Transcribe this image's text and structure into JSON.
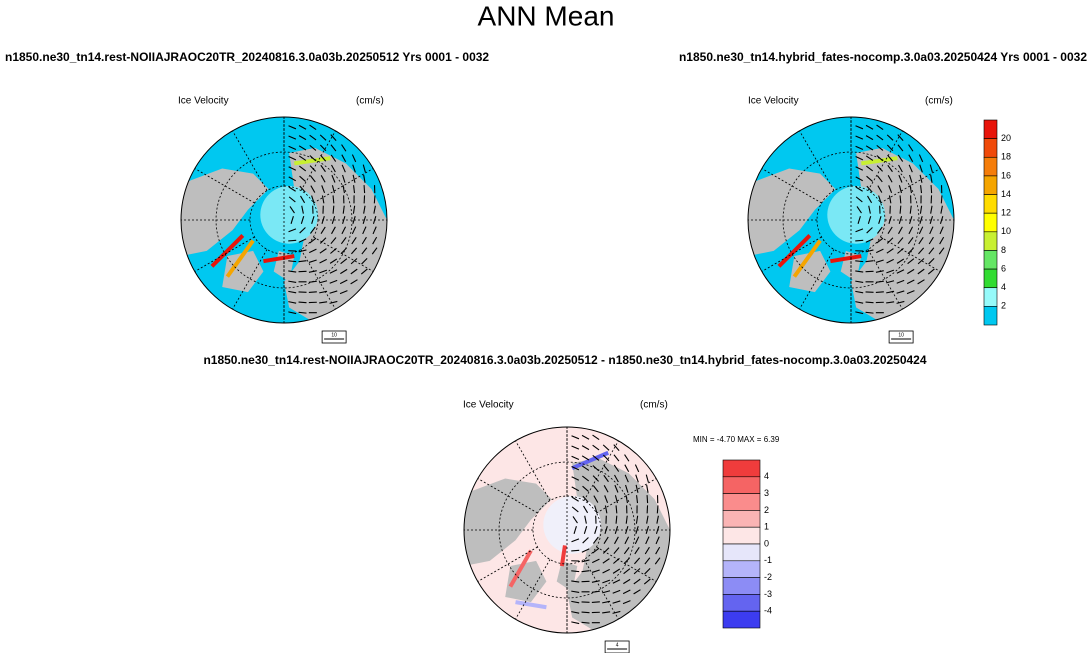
{
  "title": "ANN Mean",
  "panels": [
    {
      "header": "n1850.ne30_tn14.rest-NOIIAJRAOC20TR_20240816.3.0a03b.20250512  Yrs 0001 - 0032",
      "label": "Ice Velocity",
      "units": "(cm/s)",
      "ref_vector": "10"
    },
    {
      "header": "n1850.ne30_tn14.hybrid_fates-nocomp.3.0a03.20250424  Yrs 0001 - 0032",
      "label": "Ice Velocity",
      "units": "(cm/s)",
      "ref_vector": "10"
    },
    {
      "header": "n1850.ne30_tn14.rest-NOIIAJRAOC20TR_20240816.3.0a03b.20250512 - n1850.ne30_tn14.hybrid_fates-nocomp.3.0a03.20250424",
      "label": "Ice Velocity",
      "units": "(cm/s)",
      "ref_vector": "4",
      "min_max": "MIN =  -4.70 MAX =   6.39"
    }
  ],
  "colorbars": [
    {
      "labels": [
        "20",
        "18",
        "16",
        "14",
        "12",
        "10",
        "8",
        "6",
        "4",
        "2"
      ],
      "colors": [
        "#e8140a",
        "#f04a0a",
        "#f57d0a",
        "#f5a500",
        "#ffdc00",
        "#ffff00",
        "#c8f032",
        "#64e664",
        "#32dc32",
        "#96fafa",
        "#00c8f0"
      ]
    },
    {
      "labels": [
        "4",
        "3",
        "2",
        "1",
        "0",
        "-1",
        "-2",
        "-3",
        "-4"
      ],
      "colors": [
        "#f03c3c",
        "#f56464",
        "#fa8c8c",
        "#fab4b4",
        "#fde6e6",
        "#e6e6fa",
        "#b4b4fa",
        "#8c8cf5",
        "#6464f0",
        "#3c3cf0"
      ]
    }
  ]
}
